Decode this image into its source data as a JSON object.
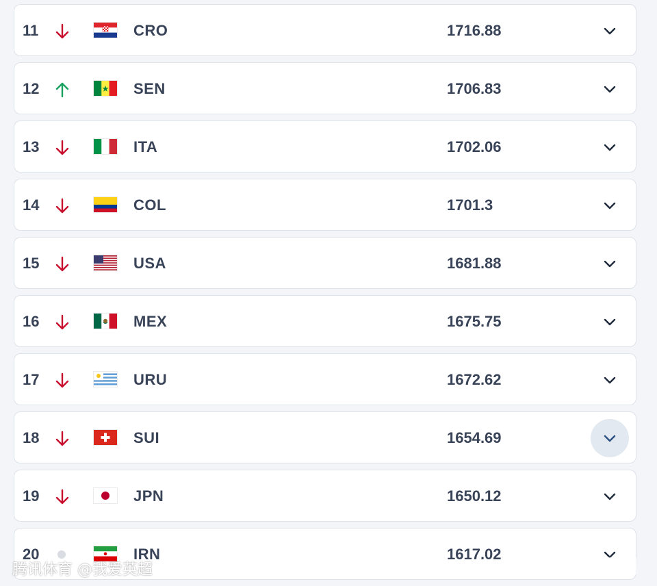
{
  "rankings": [
    {
      "rank": "11",
      "trend": "down",
      "flag_icon": "croatia-flag-icon",
      "code": "CRO",
      "points": "1716.88"
    },
    {
      "rank": "12",
      "trend": "up",
      "flag_icon": "senegal-flag-icon",
      "code": "SEN",
      "points": "1706.83"
    },
    {
      "rank": "13",
      "trend": "down",
      "flag_icon": "italy-flag-icon",
      "code": "ITA",
      "points": "1702.06"
    },
    {
      "rank": "14",
      "trend": "down",
      "flag_icon": "colombia-flag-icon",
      "code": "COL",
      "points": "1701.3"
    },
    {
      "rank": "15",
      "trend": "down",
      "flag_icon": "usa-flag-icon",
      "code": "USA",
      "points": "1681.88"
    },
    {
      "rank": "16",
      "trend": "down",
      "flag_icon": "mexico-flag-icon",
      "code": "MEX",
      "points": "1675.75"
    },
    {
      "rank": "17",
      "trend": "down",
      "flag_icon": "uruguay-flag-icon",
      "code": "URU",
      "points": "1672.62"
    },
    {
      "rank": "18",
      "trend": "down",
      "flag_icon": "switzerland-flag-icon",
      "code": "SUI",
      "points": "1654.69",
      "expand_active": true
    },
    {
      "rank": "19",
      "trend": "down",
      "flag_icon": "japan-flag-icon",
      "code": "JPN",
      "points": "1650.12"
    },
    {
      "rank": "20",
      "trend": "same",
      "flag_icon": "iran-flag-icon",
      "code": "IRN",
      "points": "1617.02"
    }
  ],
  "watermark": {
    "left_text": "腾讯体育 @我爱英超",
    "right_logo_icon": "watermark-logo-icon"
  },
  "colors": {
    "down": "#c8102e",
    "up": "#17a05d",
    "same": "#d9dce2",
    "accent": "#2b3447"
  }
}
